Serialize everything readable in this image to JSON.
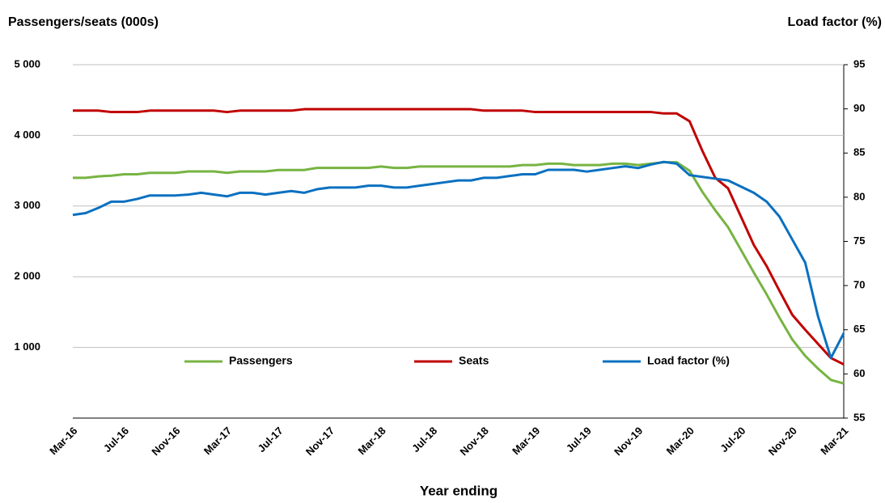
{
  "chart_data": {
    "type": "line",
    "y_label": "Passengers/seats (000s)",
    "y2_label": "Load factor (%)",
    "x_label": "Year ending",
    "categories": [
      "Mar-16",
      null,
      null,
      null,
      "Jul-16",
      null,
      null,
      null,
      "Nov-16",
      null,
      null,
      null,
      "Mar-17",
      null,
      null,
      null,
      "Jul-17",
      null,
      null,
      null,
      "Nov-17",
      null,
      null,
      null,
      "Mar-18",
      null,
      null,
      null,
      "Jul-18",
      null,
      null,
      null,
      "Nov-18",
      null,
      null,
      null,
      "Mar-19",
      null,
      null,
      null,
      "Jul-19",
      null,
      null,
      null,
      "Nov-19",
      null,
      null,
      null,
      "Mar-20",
      null,
      null,
      null,
      "Jul-20",
      null,
      null,
      null,
      "Nov-20",
      null,
      null,
      null,
      "Mar-21"
    ],
    "series": [
      {
        "name": "Passengers",
        "color": "#77b442",
        "axis": "y",
        "values": [
          3400,
          3400,
          3420,
          3430,
          3450,
          3450,
          3470,
          3470,
          3470,
          3490,
          3490,
          3490,
          3470,
          3490,
          3490,
          3490,
          3510,
          3510,
          3510,
          3540,
          3540,
          3540,
          3540,
          3540,
          3560,
          3540,
          3540,
          3560,
          3560,
          3560,
          3560,
          3560,
          3560,
          3560,
          3560,
          3580,
          3580,
          3600,
          3600,
          3580,
          3580,
          3580,
          3600,
          3600,
          3580,
          3600,
          3620,
          3620,
          3500,
          3200,
          2940,
          2700,
          2380,
          2060,
          1750,
          1420,
          1110,
          880,
          700,
          540,
          490
        ]
      },
      {
        "name": "Seats",
        "color": "#c00000",
        "axis": "y",
        "values": [
          4350,
          4350,
          4350,
          4330,
          4330,
          4330,
          4350,
          4350,
          4350,
          4350,
          4350,
          4350,
          4330,
          4350,
          4350,
          4350,
          4350,
          4350,
          4370,
          4370,
          4370,
          4370,
          4370,
          4370,
          4370,
          4370,
          4370,
          4370,
          4370,
          4370,
          4370,
          4370,
          4350,
          4350,
          4350,
          4350,
          4330,
          4330,
          4330,
          4330,
          4330,
          4330,
          4330,
          4330,
          4330,
          4330,
          4310,
          4310,
          4200,
          3780,
          3400,
          3250,
          2850,
          2450,
          2150,
          1800,
          1460,
          1250,
          1050,
          850,
          760
        ]
      },
      {
        "name": "Load factor (%)",
        "color": "#0a70c0",
        "axis": "y2",
        "values": [
          78,
          78.2,
          78.8,
          79.5,
          79.5,
          79.8,
          80.2,
          80.2,
          80.2,
          80.3,
          80.5,
          80.3,
          80.1,
          80.5,
          80.5,
          80.3,
          80.5,
          80.7,
          80.5,
          80.9,
          81.1,
          81.1,
          81.1,
          81.3,
          81.3,
          81.1,
          81.1,
          81.3,
          81.5,
          81.7,
          81.9,
          81.9,
          82.2,
          82.2,
          82.4,
          82.6,
          82.6,
          83.1,
          83.1,
          83.1,
          82.9,
          83.1,
          83.3,
          83.5,
          83.3,
          83.7,
          84.0,
          83.8,
          82.5,
          82.3,
          82.1,
          81.9,
          81.2,
          80.5,
          79.5,
          77.8,
          75.2,
          72.6,
          66.5,
          61.8,
          64.6
        ]
      }
    ],
    "ylim": [
      0,
      5000
    ],
    "yticks": [
      {
        "value": 1000,
        "label": "1 000"
      },
      {
        "value": 2000,
        "label": "2 000"
      },
      {
        "value": 3000,
        "label": "3 000"
      },
      {
        "value": 4000,
        "label": "4 000"
      },
      {
        "value": 5000,
        "label": "5 000"
      }
    ],
    "y2lim": [
      55,
      95
    ],
    "y2ticks": [
      55,
      60,
      65,
      70,
      75,
      80,
      85,
      90,
      95
    ],
    "grid": true,
    "legend": "bottom"
  }
}
